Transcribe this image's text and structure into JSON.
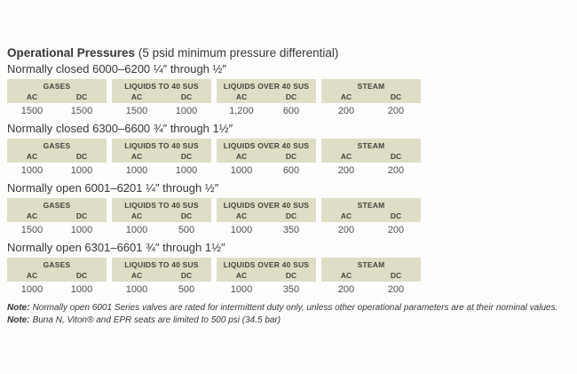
{
  "page": {
    "title_bold": "Operational Pressures",
    "title_rest": " (5 psid minimum pressure differential)"
  },
  "columns": {
    "ac": "AC",
    "dc": "DC"
  },
  "sections": [
    {
      "subtitle": "Normally closed 6000–6200 ¼″ through ½″",
      "groups": [
        {
          "label": "GASES",
          "ac": "1500",
          "dc": "1500"
        },
        {
          "label": "LIQUIDS TO 40 SUS",
          "ac": "1500",
          "dc": "1000"
        },
        {
          "label": "LIQUIDS OVER 40 SUS",
          "ac": "1,200",
          "dc": "600"
        },
        {
          "label": "STEAM",
          "ac": "200",
          "dc": "200"
        }
      ]
    },
    {
      "subtitle": "Normally closed 6300–6600 ¾″ through 1½″",
      "groups": [
        {
          "label": "GASES",
          "ac": "1000",
          "dc": "1000"
        },
        {
          "label": "LIQUIDS TO 40 SUS",
          "ac": "1000",
          "dc": "1000"
        },
        {
          "label": "LIQUIDS OVER 40 SUS",
          "ac": "1000",
          "dc": "600"
        },
        {
          "label": "STEAM",
          "ac": "200",
          "dc": "200"
        }
      ]
    },
    {
      "subtitle": "Normally open 6001–6201 ¼″ through ½″",
      "groups": [
        {
          "label": "GASES",
          "ac": "1500",
          "dc": "1000"
        },
        {
          "label": "LIQUIDS TO 40 SUS",
          "ac": "1000",
          "dc": "500"
        },
        {
          "label": "LIQUIDS OVER 40 SUS",
          "ac": "1000",
          "dc": "350"
        },
        {
          "label": "STEAM",
          "ac": "200",
          "dc": "200"
        }
      ]
    },
    {
      "subtitle": "Normally open 6301–6601 ¾″ through 1½″",
      "groups": [
        {
          "label": "GASES",
          "ac": "1000",
          "dc": "1000"
        },
        {
          "label": "LIQUIDS TO 40 SUS",
          "ac": "1000",
          "dc": "500"
        },
        {
          "label": "LIQUIDS OVER 40 SUS",
          "ac": "1000",
          "dc": "350"
        },
        {
          "label": "STEAM",
          "ac": "200",
          "dc": "200"
        }
      ]
    }
  ],
  "notes": [
    {
      "label": "Note:",
      "text": "Normally open 6001 Series valves are rated for intermittent duty only, unless other operational parameters are at their nominal values."
    },
    {
      "label": "Note:",
      "text": "Buna N, Viton® and EPR seats are limited to 500 psi (34.5 bar)"
    }
  ],
  "colors": {
    "page_bg": "#fdfdfc",
    "band_bg": "#dfddc6",
    "band_text": "#45443b",
    "text_dark": "#363636",
    "value_text": "#4e4e4e"
  }
}
